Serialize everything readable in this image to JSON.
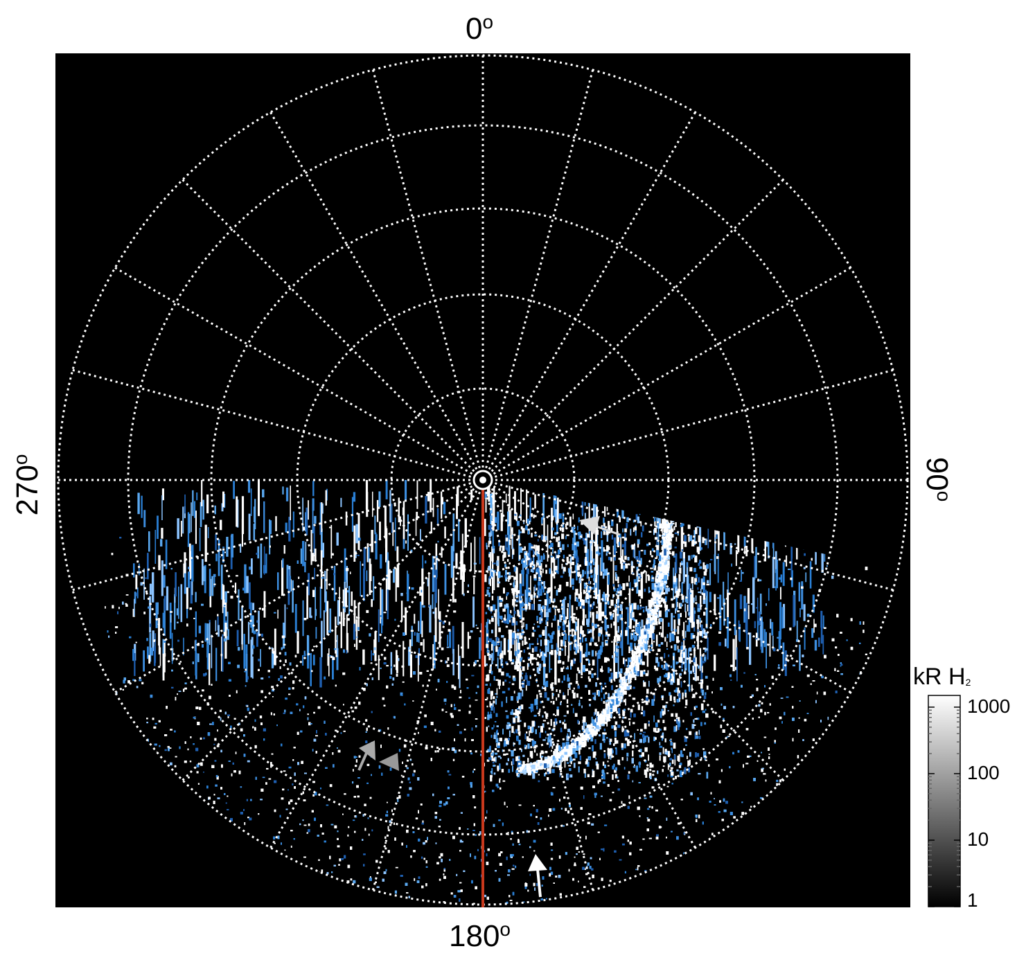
{
  "figure": {
    "axis_labels": {
      "top": "0",
      "right": "90",
      "bottom": "180",
      "left": "270",
      "degree_symbol": "o"
    },
    "colorbar": {
      "title": "kR H",
      "title_subscript": "2",
      "ticks": [
        "1000",
        "100",
        "10",
        "1"
      ],
      "scale": "log",
      "range": [
        1,
        1500
      ]
    },
    "colors": {
      "background": "#000000",
      "grid": "#ffffff",
      "emission_bright": "#ffffff",
      "emission_dim": "#2a7fd4",
      "meridian_line": "#c8381c",
      "arrow_white": "#ffffff",
      "arrow_gray": "#aaaaaa"
    },
    "grid": "dotted polar grid, 15-degree meridians"
  }
}
